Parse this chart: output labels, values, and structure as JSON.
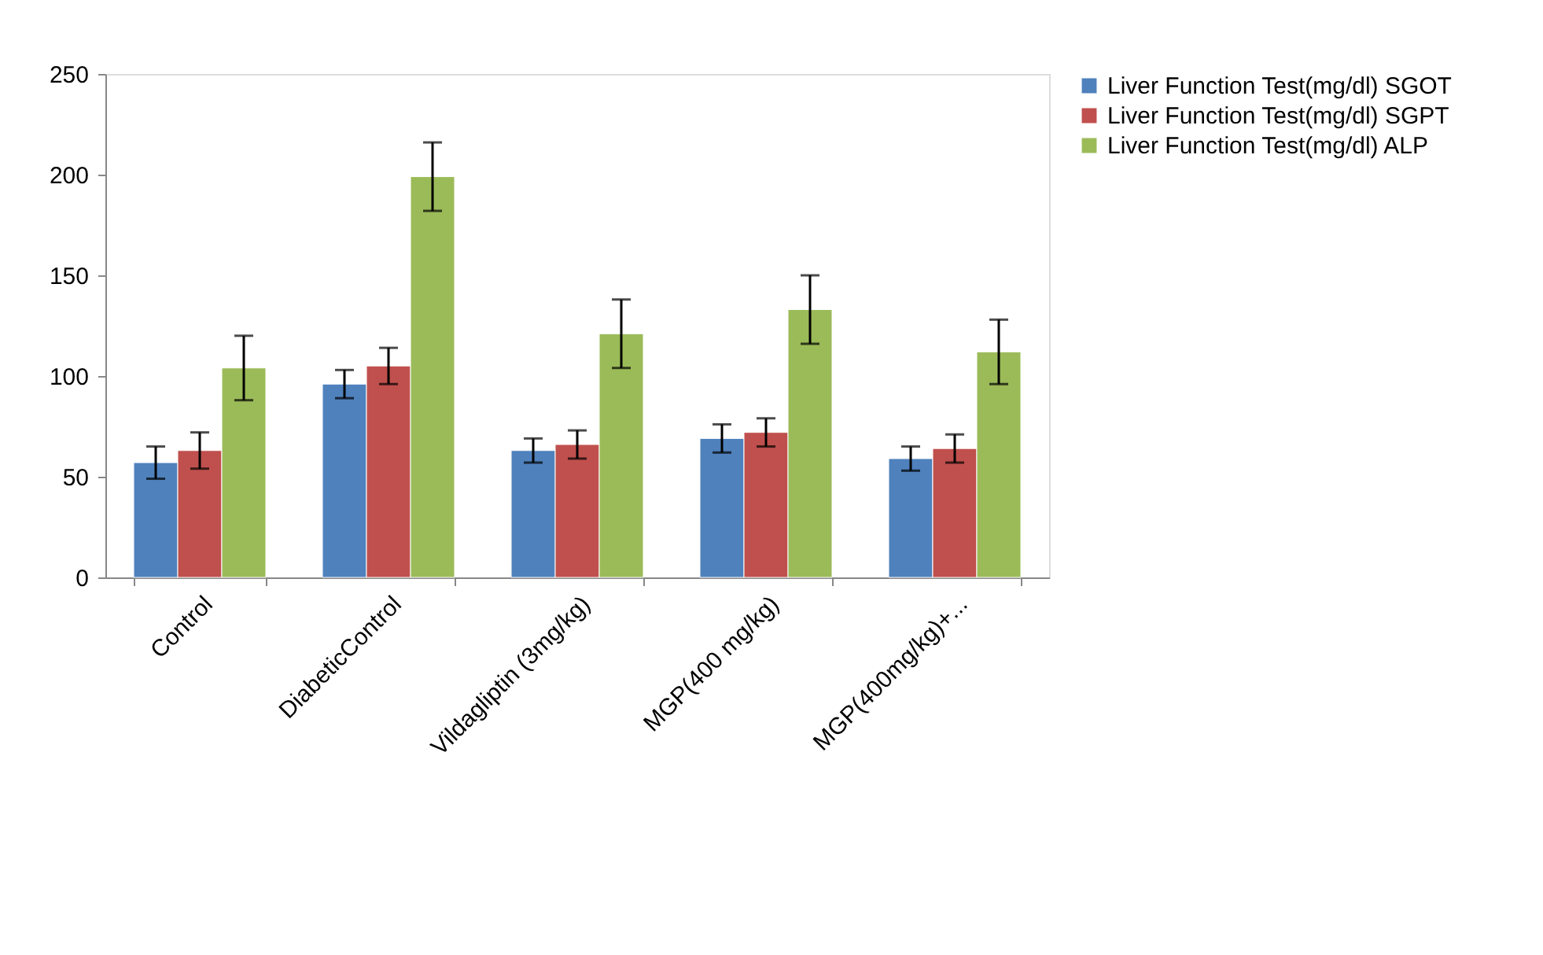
{
  "chart_data": {
    "type": "bar",
    "categories": [
      "Control",
      "DiabeticControl",
      "Vildagliptin (3mg/kg)",
      "MGP(400 mg/kg)",
      "MGP(400mg/kg)+..."
    ],
    "series": [
      {
        "name": "Liver Function Test(mg/dl) SGOT",
        "color": "#4f81bd",
        "values": [
          57,
          96,
          63,
          69,
          59
        ],
        "errors": [
          8,
          7,
          6,
          7,
          6
        ]
      },
      {
        "name": "Liver Function Test(mg/dl) SGPT",
        "color": "#c0504d",
        "values": [
          63,
          105,
          66,
          72,
          64
        ],
        "errors": [
          9,
          9,
          7,
          7,
          7
        ]
      },
      {
        "name": "Liver Function Test(mg/dl) ALP",
        "color": "#9bbb59",
        "values": [
          104,
          199,
          121,
          133,
          112
        ],
        "errors": [
          16,
          17,
          17,
          17,
          16
        ]
      }
    ],
    "ylim": [
      0,
      250
    ],
    "yticks": [
      0,
      50,
      100,
      150,
      200,
      250
    ],
    "grid": false,
    "legend": "right"
  }
}
